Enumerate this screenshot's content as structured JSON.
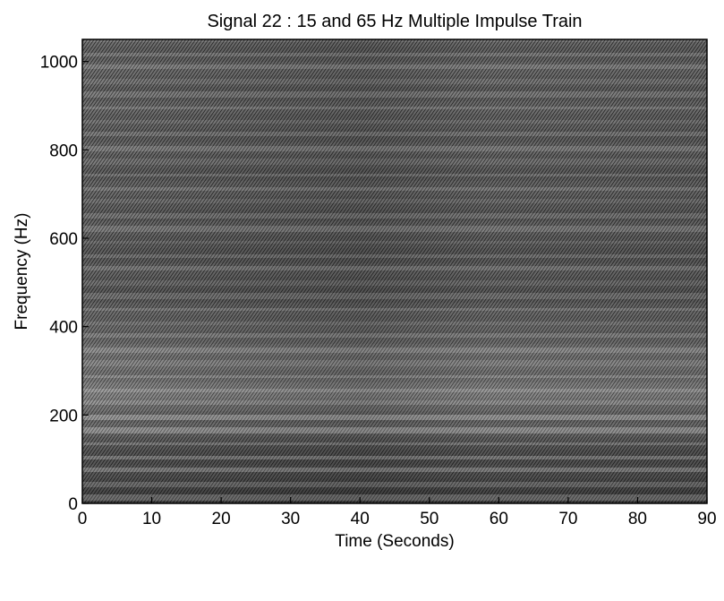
{
  "chart_data": {
    "type": "heatmap",
    "title": "Signal 22 : 15 and 65 Hz Multiple Impulse Train",
    "xlabel": "Time (Seconds)",
    "ylabel": "Frequency (Hz)",
    "xlim": [
      0,
      90
    ],
    "ylim": [
      0,
      1050
    ],
    "x_ticks": [
      0,
      10,
      20,
      30,
      40,
      50,
      60,
      70,
      80,
      90
    ],
    "y_ticks": [
      0,
      200,
      400,
      600,
      800,
      1000
    ],
    "x_tick_labels": [
      "0",
      "10",
      "20",
      "30",
      "40",
      "50",
      "60",
      "70",
      "80",
      "90"
    ],
    "y_tick_labels": [
      "0",
      "200",
      "400",
      "600",
      "800",
      "1000"
    ],
    "colormap": "grayscale",
    "grid": false,
    "legend": "none",
    "colors": {
      "background": "#ffffff",
      "axis": "#000000"
    }
  }
}
